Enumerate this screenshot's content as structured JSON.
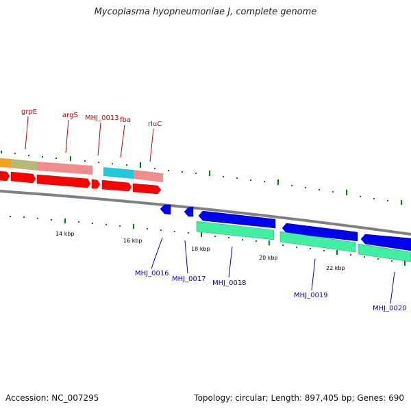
{
  "title": "Mycoplasma hyopneumoniae J, complete genome",
  "footer": {
    "accession": "Accession: NC_007295",
    "topology": "Topology: circular; Length: 897,405 bp; Genes: 690"
  },
  "colors": {
    "forward_gene": "#ff0000",
    "reverse_gene": "#0000ff",
    "forward_label": "#c00000",
    "reverse_label": "#0000b0",
    "backbone": "#808080",
    "ticks": "#008000",
    "cog_orange": "#f5a01a",
    "cog_olive": "#b8b878",
    "cog_pink": "#f08c8c",
    "cog_cyan": "#20c8d8",
    "cog_green": "#40f0a0"
  },
  "gene_labels_forward": [
    "grpE",
    "argS",
    "MHJ_0013",
    "fba",
    "rluC"
  ],
  "gene_labels_reverse": [
    "MHJ_0016",
    "MHJ_0017",
    "MHJ_0018",
    "MHJ_0019",
    "MHJ_0020"
  ],
  "kbp_ticks": [
    "14 kbp",
    "16 kbp",
    "18 kbp",
    "20 kbp",
    "22 kbp"
  ]
}
